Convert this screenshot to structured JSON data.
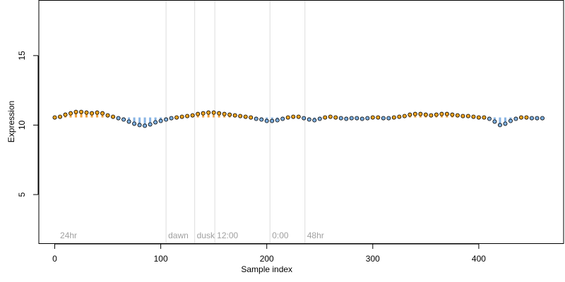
{
  "chart_data": {
    "type": "scatter",
    "xlabel": "Sample index",
    "ylabel": "Expression",
    "xlim": [
      -15,
      480
    ],
    "ylim": [
      1.5,
      19
    ],
    "x_ticks": [
      0,
      100,
      200,
      300,
      400
    ],
    "y_ticks": [
      5,
      10,
      15
    ],
    "baseline": 10.55,
    "colors": {
      "above": "#f5a623",
      "below": "#7fb0e0",
      "stem_above": "#f0a03a",
      "stem_below": "#88b4e4",
      "guide": "#dddddd",
      "point_edge": "#000000"
    },
    "annotations": [
      {
        "x": 3,
        "guide": false,
        "label": "24hr"
      },
      {
        "x": 105,
        "guide": true,
        "label": "dawn"
      },
      {
        "x": 132,
        "guide": true,
        "label": "dusk"
      },
      {
        "x": 151,
        "guide": true,
        "label": "12:00"
      },
      {
        "x": 203,
        "guide": true,
        "label": "0:00"
      },
      {
        "x": 236,
        "guide": true,
        "label": "48hr"
      }
    ],
    "series": [
      {
        "values": [
          {
            "x": 0,
            "y": 10.55
          },
          {
            "x": 5,
            "y": 10.6
          },
          {
            "x": 10,
            "y": 10.75
          },
          {
            "x": 15,
            "y": 10.85
          },
          {
            "x": 20,
            "y": 10.95
          },
          {
            "x": 25,
            "y": 10.95
          },
          {
            "x": 30,
            "y": 10.9
          },
          {
            "x": 35,
            "y": 10.85
          },
          {
            "x": 40,
            "y": 10.9
          },
          {
            "x": 45,
            "y": 10.85
          },
          {
            "x": 50,
            "y": 10.7
          },
          {
            "x": 55,
            "y": 10.6
          },
          {
            "x": 60,
            "y": 10.5
          },
          {
            "x": 65,
            "y": 10.4
          },
          {
            "x": 70,
            "y": 10.25
          },
          {
            "x": 75,
            "y": 10.1
          },
          {
            "x": 80,
            "y": 10.0
          },
          {
            "x": 85,
            "y": 9.95
          },
          {
            "x": 90,
            "y": 10.05
          },
          {
            "x": 95,
            "y": 10.2
          },
          {
            "x": 100,
            "y": 10.3
          },
          {
            "x": 105,
            "y": 10.4
          },
          {
            "x": 110,
            "y": 10.5
          },
          {
            "x": 115,
            "y": 10.55
          },
          {
            "x": 120,
            "y": 10.6
          },
          {
            "x": 125,
            "y": 10.65
          },
          {
            "x": 130,
            "y": 10.7
          },
          {
            "x": 135,
            "y": 10.8
          },
          {
            "x": 140,
            "y": 10.85
          },
          {
            "x": 145,
            "y": 10.9
          },
          {
            "x": 150,
            "y": 10.9
          },
          {
            "x": 155,
            "y": 10.85
          },
          {
            "x": 160,
            "y": 10.8
          },
          {
            "x": 165,
            "y": 10.75
          },
          {
            "x": 170,
            "y": 10.7
          },
          {
            "x": 175,
            "y": 10.65
          },
          {
            "x": 180,
            "y": 10.6
          },
          {
            "x": 185,
            "y": 10.55
          },
          {
            "x": 190,
            "y": 10.45
          },
          {
            "x": 195,
            "y": 10.4
          },
          {
            "x": 200,
            "y": 10.3
          },
          {
            "x": 205,
            "y": 10.3
          },
          {
            "x": 210,
            "y": 10.35
          },
          {
            "x": 215,
            "y": 10.45
          },
          {
            "x": 220,
            "y": 10.55
          },
          {
            "x": 225,
            "y": 10.6
          },
          {
            "x": 230,
            "y": 10.6
          },
          {
            "x": 235,
            "y": 10.5
          },
          {
            "x": 240,
            "y": 10.4
          },
          {
            "x": 245,
            "y": 10.35
          },
          {
            "x": 250,
            "y": 10.45
          },
          {
            "x": 255,
            "y": 10.55
          },
          {
            "x": 260,
            "y": 10.6
          },
          {
            "x": 265,
            "y": 10.55
          },
          {
            "x": 270,
            "y": 10.5
          },
          {
            "x": 275,
            "y": 10.45
          },
          {
            "x": 280,
            "y": 10.5
          },
          {
            "x": 285,
            "y": 10.5
          },
          {
            "x": 290,
            "y": 10.45
          },
          {
            "x": 295,
            "y": 10.5
          },
          {
            "x": 300,
            "y": 10.55
          },
          {
            "x": 305,
            "y": 10.55
          },
          {
            "x": 310,
            "y": 10.5
          },
          {
            "x": 315,
            "y": 10.5
          },
          {
            "x": 320,
            "y": 10.55
          },
          {
            "x": 325,
            "y": 10.6
          },
          {
            "x": 330,
            "y": 10.65
          },
          {
            "x": 335,
            "y": 10.75
          },
          {
            "x": 340,
            "y": 10.8
          },
          {
            "x": 345,
            "y": 10.8
          },
          {
            "x": 350,
            "y": 10.75
          },
          {
            "x": 355,
            "y": 10.7
          },
          {
            "x": 360,
            "y": 10.75
          },
          {
            "x": 365,
            "y": 10.8
          },
          {
            "x": 370,
            "y": 10.8
          },
          {
            "x": 375,
            "y": 10.75
          },
          {
            "x": 380,
            "y": 10.7
          },
          {
            "x": 385,
            "y": 10.65
          },
          {
            "x": 390,
            "y": 10.65
          },
          {
            "x": 395,
            "y": 10.6
          },
          {
            "x": 400,
            "y": 10.55
          },
          {
            "x": 405,
            "y": 10.55
          },
          {
            "x": 410,
            "y": 10.45
          },
          {
            "x": 415,
            "y": 10.25
          },
          {
            "x": 420,
            "y": 10.0
          },
          {
            "x": 425,
            "y": 10.1
          },
          {
            "x": 430,
            "y": 10.3
          },
          {
            "x": 435,
            "y": 10.45
          },
          {
            "x": 440,
            "y": 10.55
          },
          {
            "x": 445,
            "y": 10.55
          },
          {
            "x": 450,
            "y": 10.5
          },
          {
            "x": 455,
            "y": 10.5
          },
          {
            "x": 460,
            "y": 10.5
          }
        ]
      }
    ]
  }
}
